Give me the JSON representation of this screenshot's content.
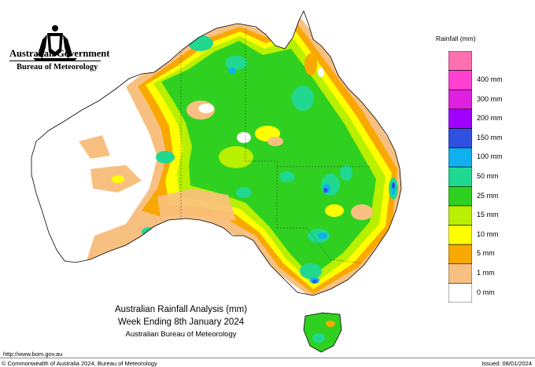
{
  "header": {
    "government": "Australian Government",
    "bureau": "Bureau of Meteorology"
  },
  "map": {
    "title_line1": "Australian Rainfall Analysis (mm)",
    "title_line2": "Week Ending 8th January 2024",
    "title_line3": "Australian Bureau of Meteorology"
  },
  "legend": {
    "title": "Rainfall (mm)",
    "bins": [
      {
        "label": "400 mm",
        "color": "#ff40d0"
      },
      {
        "label": "300 mm",
        "color": "#e020e0"
      },
      {
        "label": "200 mm",
        "color": "#a000ff"
      },
      {
        "label": "150 mm",
        "color": "#3050e0"
      },
      {
        "label": "100 mm",
        "color": "#10b0f0"
      },
      {
        "label": "50 mm",
        "color": "#20d890"
      },
      {
        "label": "25 mm",
        "color": "#30d020"
      },
      {
        "label": "15 mm",
        "color": "#b8f000"
      },
      {
        "label": "10 mm",
        "color": "#ffff00"
      },
      {
        "label": "5 mm",
        "color": "#f8a800"
      },
      {
        "label": "1 mm",
        "color": "#f8c080"
      },
      {
        "label": "0 mm",
        "color": "#ffffff"
      }
    ],
    "top_color": "#ff70b0"
  },
  "footer": {
    "url": "http://www.bom.gov.au",
    "copyright": "© Commonwealth of Australia 2024, Bureau of Meteorology",
    "issued": "Issued: 08/01/2024"
  }
}
